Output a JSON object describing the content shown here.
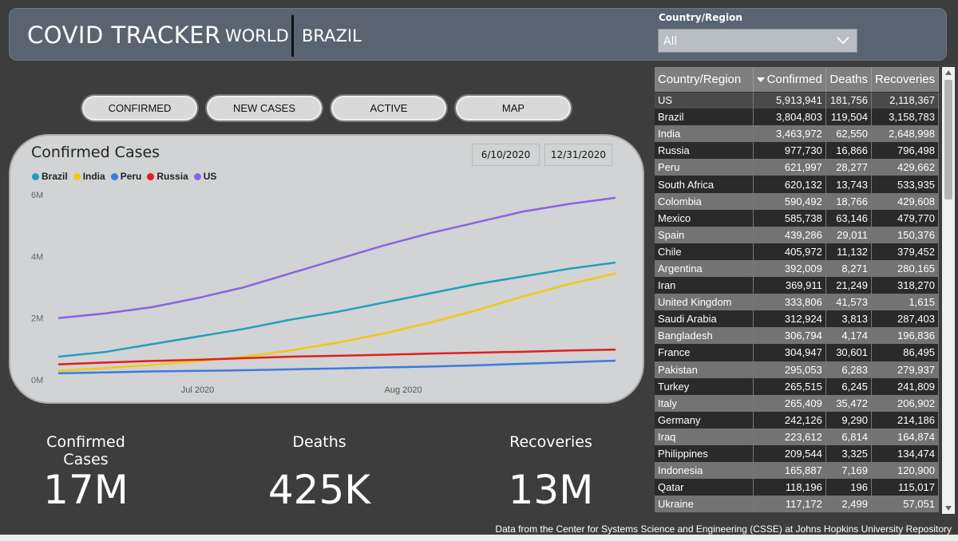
{
  "header": {
    "title": "COVID TRACKER",
    "tabs": [
      "WORLD",
      "BRAZIL"
    ],
    "filter_label": "Country/Region",
    "filter_value": "All"
  },
  "buttons": [
    "CONFIRMED",
    "NEW CASES",
    "ACTIVE",
    "MAP"
  ],
  "chart": {
    "title": "Confirmed Cases",
    "date_start": "6/10/2020",
    "date_end": "12/31/2020"
  },
  "chart_data": {
    "type": "line",
    "title": "Confirmed Cases",
    "x_ticks": [
      "Jul 2020",
      "Aug 2020"
    ],
    "y_ticks": [
      "0M",
      "2M",
      "4M",
      "6M"
    ],
    "ylim": [
      0,
      6000000
    ],
    "legend_position": "top-left",
    "grid": false,
    "x": [
      "2020-06-10",
      "2020-06-17",
      "2020-06-24",
      "2020-07-01",
      "2020-07-08",
      "2020-07-15",
      "2020-07-22",
      "2020-07-29",
      "2020-08-05",
      "2020-08-12",
      "2020-08-19",
      "2020-08-26",
      "2020-09-02"
    ],
    "series": [
      {
        "name": "Brazil",
        "color": "#1fa0be",
        "values": [
          750000,
          900000,
          1150000,
          1400000,
          1650000,
          1950000,
          2200000,
          2500000,
          2800000,
          3100000,
          3350000,
          3600000,
          3800000
        ]
      },
      {
        "name": "India",
        "color": "#f2c811",
        "values": [
          280000,
          380000,
          480000,
          600000,
          750000,
          950000,
          1200000,
          1500000,
          1850000,
          2250000,
          2700000,
          3100000,
          3450000
        ]
      },
      {
        "name": "Peru",
        "color": "#3b7be0",
        "values": [
          210000,
          240000,
          270000,
          290000,
          310000,
          340000,
          370000,
          400000,
          430000,
          470000,
          520000,
          570000,
          620000
        ]
      },
      {
        "name": "Russia",
        "color": "#e01e1e",
        "values": [
          500000,
          560000,
          610000,
          650000,
          700000,
          750000,
          780000,
          810000,
          850000,
          880000,
          910000,
          950000,
          980000
        ]
      },
      {
        "name": "US",
        "color": "#8a63e0",
        "values": [
          2000000,
          2150000,
          2350000,
          2650000,
          3000000,
          3450000,
          3900000,
          4350000,
          4750000,
          5100000,
          5450000,
          5700000,
          5900000
        ]
      }
    ]
  },
  "kpis": [
    {
      "label": "Confirmed Cases",
      "value": "17M"
    },
    {
      "label": "Deaths",
      "value": "425K"
    },
    {
      "label": "Recoveries",
      "value": "13M"
    }
  ],
  "table": {
    "headers": [
      "Country/Region",
      "Confirmed",
      "Deaths",
      "Recoveries"
    ],
    "rows": [
      [
        "US",
        "5,913,941",
        "181,756",
        "2,118,367"
      ],
      [
        "Brazil",
        "3,804,803",
        "119,504",
        "3,158,783"
      ],
      [
        "India",
        "3,463,972",
        "62,550",
        "2,648,998"
      ],
      [
        "Russia",
        "977,730",
        "16,866",
        "796,498"
      ],
      [
        "Peru",
        "621,997",
        "28,277",
        "429,662"
      ],
      [
        "South Africa",
        "620,132",
        "13,743",
        "533,935"
      ],
      [
        "Colombia",
        "590,492",
        "18,766",
        "429,608"
      ],
      [
        "Mexico",
        "585,738",
        "63,146",
        "479,770"
      ],
      [
        "Spain",
        "439,286",
        "29,011",
        "150,376"
      ],
      [
        "Chile",
        "405,972",
        "11,132",
        "379,452"
      ],
      [
        "Argentina",
        "392,009",
        "8,271",
        "280,165"
      ],
      [
        "Iran",
        "369,911",
        "21,249",
        "318,270"
      ],
      [
        "United Kingdom",
        "333,806",
        "41,573",
        "1,615"
      ],
      [
        "Saudi Arabia",
        "312,924",
        "3,813",
        "287,403"
      ],
      [
        "Bangladesh",
        "306,794",
        "4,174",
        "196,836"
      ],
      [
        "France",
        "304,947",
        "30,601",
        "86,495"
      ],
      [
        "Pakistan",
        "295,053",
        "6,283",
        "279,937"
      ],
      [
        "Turkey",
        "265,515",
        "6,245",
        "241,809"
      ],
      [
        "Italy",
        "265,409",
        "35,472",
        "206,902"
      ],
      [
        "Germany",
        "242,126",
        "9,290",
        "214,186"
      ],
      [
        "Iraq",
        "223,612",
        "6,814",
        "164,874"
      ],
      [
        "Philippines",
        "209,544",
        "3,325",
        "134,474"
      ],
      [
        "Indonesia",
        "165,887",
        "7,169",
        "120,900"
      ],
      [
        "Qatar",
        "118,196",
        "196",
        "115,017"
      ],
      [
        "Ukraine",
        "117,172",
        "2,499",
        "57,051"
      ]
    ]
  },
  "footer": "Data from the Center for Systems Science and Engineering (CSSE) at Johns Hopkins University Repository",
  "icons": {
    "dropdown": "chevron-down-icon",
    "sort": "sort-desc-icon"
  }
}
